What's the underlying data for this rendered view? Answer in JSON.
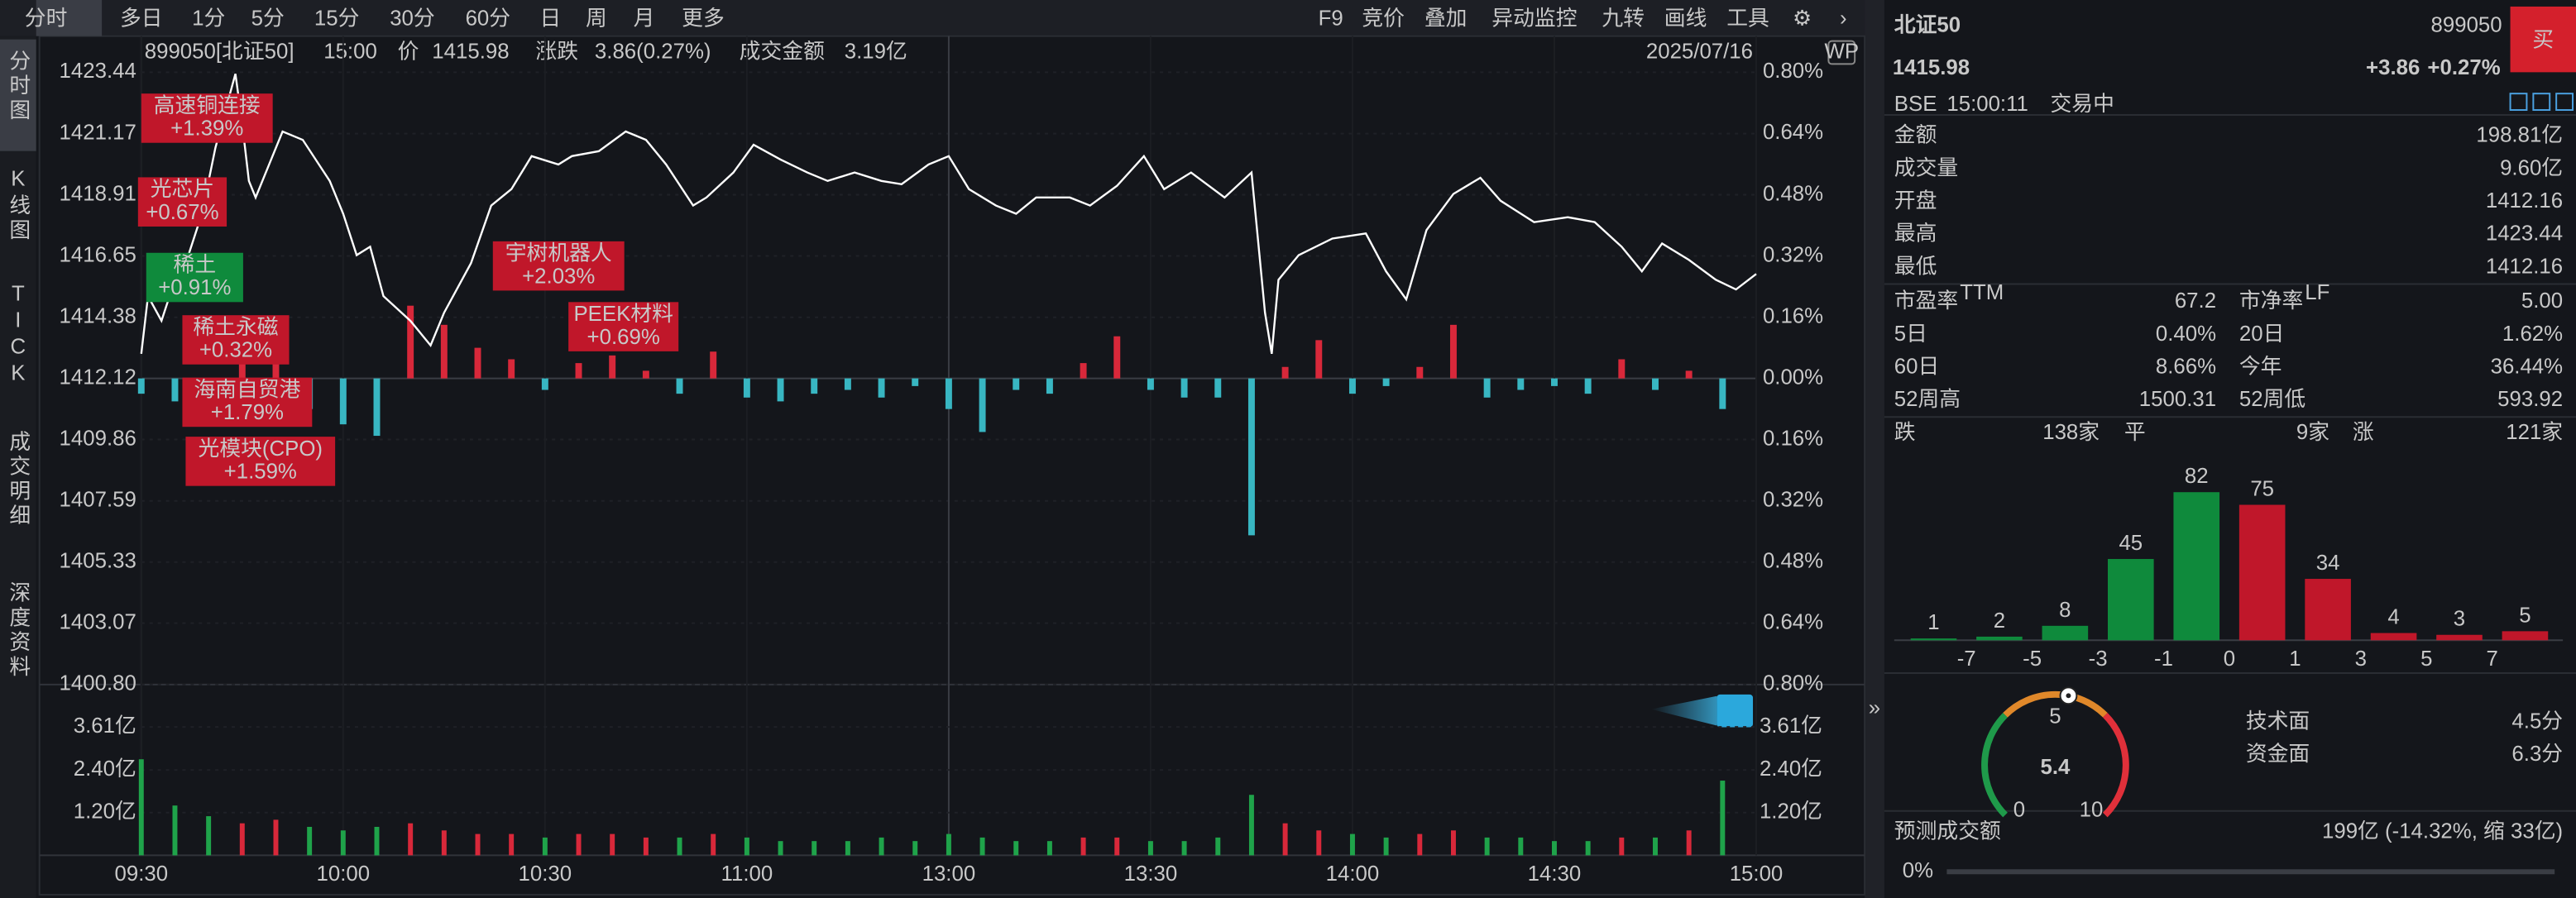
{
  "toolbar": {
    "tabs": [
      "分时",
      "多日",
      "1分",
      "5分",
      "15分",
      "30分",
      "60分",
      "日",
      "周",
      "月",
      "更多"
    ],
    "tools": [
      "F9",
      "竞价",
      "叠加",
      "异动监控",
      "九转",
      "画线",
      "工具"
    ]
  },
  "sidebar": [
    "分时图",
    "K线图",
    "TICK",
    "成交明细",
    "深度资料"
  ],
  "info_bar": {
    "code": "899050[北证50]",
    "time": "15:00",
    "price_label": "价",
    "price": "1415.98",
    "change_label": "涨跌",
    "change": "3.86(0.27%)",
    "amount_label": "成交金额",
    "amount": "3.19亿",
    "date": "2025/07/16"
  },
  "chart_data": [
    {
      "type": "line",
      "color": "#ffffff",
      "up_color": "#e0303a",
      "down_color": "#2fbf5a",
      "flat_color": "#d8d8d8",
      "grid": true,
      "xlim": [
        0,
        240
      ],
      "xticks": [
        {
          "value": 0,
          "label": "09:30"
        },
        {
          "value": 30,
          "label": "10:00"
        },
        {
          "value": 60,
          "label": "10:30"
        },
        {
          "value": 90,
          "label": "11:00"
        },
        {
          "value": 120,
          "label": "13:00"
        },
        {
          "value": 150,
          "label": "13:30"
        },
        {
          "value": 180,
          "label": "14:00"
        },
        {
          "value": 210,
          "label": "14:30"
        },
        {
          "value": 240,
          "label": "15:00"
        }
      ],
      "ylim": [
        1400.8,
        1423.44
      ],
      "yticks": [
        1423.44,
        1421.17,
        1418.91,
        1416.65,
        1414.38,
        1412.12,
        1409.86,
        1407.59,
        1405.33,
        1403.07,
        {
          "value": 1400.8,
          "label": "1400.80"
        }
      ],
      "y2lim": [
        -0.8,
        0.8
      ],
      "y2ticks": [
        {
          "value": 0.8,
          "label": "0.80%"
        },
        {
          "value": 0.64,
          "label": "0.64%"
        },
        {
          "value": 0.48,
          "label": "0.48%"
        },
        {
          "value": 0.32,
          "label": "0.32%"
        },
        {
          "value": 0.16,
          "label": "0.16%"
        },
        {
          "value": 0,
          "label": "0.00%"
        },
        {
          "value": -0.16,
          "label": "0.16%"
        },
        {
          "value": -0.32,
          "label": "0.32%"
        },
        {
          "value": -0.48,
          "label": "0.48%"
        },
        {
          "value": -0.64,
          "label": "0.64%"
        },
        {
          "value": -0.8,
          "label": "0.80%"
        }
      ],
      "x": [
        0,
        1,
        3,
        5,
        7,
        9,
        11,
        13,
        14,
        15,
        16,
        17,
        19,
        21,
        24,
        28,
        30,
        32,
        34,
        36,
        40,
        43,
        45,
        49,
        52,
        55,
        58,
        62,
        64,
        68,
        72,
        75,
        78,
        82,
        84,
        88,
        91,
        95,
        99,
        102,
        106,
        110,
        113,
        117,
        120,
        123,
        127,
        130,
        133,
        138,
        141,
        145,
        149,
        152,
        156,
        161,
        165,
        167,
        168,
        169,
        172,
        177,
        182,
        185,
        188,
        191,
        195,
        199,
        202,
        207,
        212,
        216,
        220,
        223,
        226,
        230,
        234,
        237,
        240
      ],
      "values": [
        1413.03,
        1415.16,
        1414.25,
        1415.77,
        1416.68,
        1418.21,
        1420.64,
        1422.47,
        1423.38,
        1421.55,
        1419.42,
        1418.81,
        1420.03,
        1421.25,
        1420.94,
        1419.42,
        1418.21,
        1416.68,
        1416.99,
        1415.16,
        1414.25,
        1413.34,
        1414.55,
        1416.38,
        1418.51,
        1419.12,
        1420.34,
        1420.03,
        1420.34,
        1420.52,
        1421.25,
        1420.94,
        1420.03,
        1418.51,
        1418.81,
        1419.73,
        1420.76,
        1420.21,
        1419.73,
        1419.42,
        1419.73,
        1419.42,
        1419.3,
        1420.03,
        1420.34,
        1419.12,
        1418.51,
        1418.21,
        1418.81,
        1418.81,
        1418.51,
        1419.24,
        1420.34,
        1419.12,
        1419.73,
        1418.81,
        1419.73,
        1414.55,
        1413.03,
        1415.77,
        1416.68,
        1417.29,
        1417.48,
        1416.08,
        1415.04,
        1417.6,
        1418.94,
        1419.54,
        1418.69,
        1417.9,
        1418.08,
        1417.9,
        1416.99,
        1416.08,
        1417.11,
        1416.5,
        1415.77,
        1415.41,
        1415.98
      ],
      "breadth": {
        "axis": "y2",
        "up_color": "#d8283a",
        "down_color": "#38b6c2",
        "x": [
          0,
          5,
          10,
          15,
          20,
          25,
          30,
          35,
          40,
          45,
          50,
          55,
          60,
          65,
          70,
          75,
          80,
          85,
          90,
          95,
          100,
          105,
          110,
          115,
          120,
          125,
          130,
          135,
          140,
          145,
          150,
          155,
          160,
          165,
          170,
          175,
          180,
          185,
          190,
          195,
          200,
          205,
          210,
          215,
          220,
          225,
          230,
          235
        ],
        "values": [
          -0.04,
          -0.06,
          -0.05,
          0.04,
          0.06,
          -0.08,
          -0.12,
          -0.15,
          0.19,
          0.14,
          0.08,
          0.05,
          -0.03,
          0.04,
          0.06,
          0.02,
          -0.04,
          0.07,
          -0.05,
          -0.06,
          -0.04,
          -0.03,
          -0.05,
          -0.02,
          -0.08,
          -0.14,
          -0.03,
          -0.04,
          0.04,
          0.11,
          -0.03,
          -0.05,
          -0.05,
          -0.41,
          0.03,
          0.1,
          -0.04,
          -0.02,
          0.03,
          0.14,
          -0.05,
          -0.03,
          -0.02,
          -0.04,
          0.05,
          -0.03,
          0.02,
          -0.08
        ]
      },
      "annotations": [
        {
          "name": "高速铜连接",
          "change": "+1.39%",
          "color": "#c0172a"
        },
        {
          "name": "光芯片",
          "change": "+0.67%",
          "color": "#c0172a"
        },
        {
          "name": "稀土",
          "change": "+0.91%",
          "color": "#0f8a3c"
        },
        {
          "name": "稀土永磁",
          "change": "+0.32%",
          "color": "#c0172a"
        },
        {
          "name": "海南自贸港",
          "change": "+1.79%",
          "color": "#c0172a"
        },
        {
          "name": "光模块(CPO)",
          "change": "+1.59%",
          "color": "#c0172a"
        },
        {
          "name": "宇树机器人",
          "change": "+2.03%",
          "color": "#c0172a"
        },
        {
          "name": "PEEK材料",
          "change": "+0.69%",
          "color": "#c0172a"
        }
      ]
    },
    {
      "type": "bar",
      "up_color": "#d8283a",
      "down_color": "#1fa34a",
      "ylim": [
        0,
        4.2
      ],
      "yticks": [
        {
          "value": 3.61,
          "label": "3.61亿"
        },
        {
          "value": 2.4,
          "label": "2.40亿"
        },
        {
          "value": 1.2,
          "label": "1.20亿"
        }
      ],
      "x": [
        0,
        5,
        10,
        15,
        20,
        25,
        30,
        35,
        40,
        45,
        50,
        55,
        60,
        65,
        70,
        75,
        80,
        85,
        90,
        95,
        100,
        105,
        110,
        115,
        120,
        125,
        130,
        135,
        140,
        145,
        150,
        155,
        160,
        165,
        170,
        175,
        180,
        185,
        190,
        195,
        200,
        205,
        210,
        215,
        220,
        225,
        230,
        235
      ],
      "values": [
        2.7,
        1.4,
        1.1,
        0.9,
        1.0,
        0.8,
        0.7,
        0.8,
        0.9,
        0.7,
        0.6,
        0.6,
        0.5,
        0.6,
        0.6,
        0.5,
        0.5,
        0.6,
        0.5,
        0.4,
        0.4,
        0.4,
        0.5,
        0.4,
        0.6,
        0.5,
        0.4,
        0.4,
        0.5,
        0.5,
        0.4,
        0.4,
        0.5,
        1.7,
        0.9,
        0.7,
        0.6,
        0.5,
        0.6,
        0.7,
        0.5,
        0.5,
        0.4,
        0.4,
        0.5,
        0.5,
        0.7,
        2.1
      ]
    },
    {
      "type": "histogram",
      "up_color": "#c0172a",
      "down_color": "#0f8a3c",
      "up_text": "#f03a44",
      "down_text": "#2fbf5a",
      "bins": [
        null,
        -7,
        -5,
        -3,
        -1,
        0,
        1,
        3,
        5,
        7,
        null
      ],
      "values": [
        1,
        2,
        8,
        45,
        82,
        75,
        34,
        4,
        3,
        5
      ],
      "ylim": [
        0,
        90
      ]
    },
    {
      "type": "gauge",
      "min": 0,
      "max": 10,
      "ticks": [
        0,
        5,
        10
      ],
      "value": 5.4,
      "items": [
        {
          "name": "技术面",
          "value": "4.5分"
        },
        {
          "name": "资金面",
          "value": "6.3分"
        }
      ]
    }
  ],
  "quote": {
    "name": "北证50",
    "code": "899050",
    "price": "1415.98",
    "change": "+3.86",
    "pct": "+0.27%",
    "buy": "买",
    "exchange": "BSE",
    "time": "15:00:11",
    "status": "交易中"
  },
  "stats": [
    {
      "label": "金额",
      "value": "198.81亿",
      "color": "#e8e8e8"
    },
    {
      "label": "成交量",
      "value": "9.60亿",
      "color": "#e8e8e8"
    },
    {
      "label": "开盘",
      "value": "1412.16",
      "color": "#f03a44"
    },
    {
      "label": "最高",
      "value": "1423.44",
      "color": "#f03a44"
    },
    {
      "label": "最低",
      "value": "1412.16",
      "color": "#f03a44"
    }
  ],
  "stats2": [
    [
      {
        "label": "市盈率",
        "sup": "TTM",
        "value": "67.2",
        "color": "#e8e8e8"
      },
      {
        "label": "市净率",
        "sup": "LF",
        "value": "5.00",
        "color": "#e8e8e8"
      }
    ],
    [
      {
        "label": "5日",
        "value": "0.40%",
        "color": "#f03a44"
      },
      {
        "label": "20日",
        "value": "1.62%",
        "color": "#f03a44"
      }
    ],
    [
      {
        "label": "60日",
        "value": "8.66%",
        "color": "#f03a44"
      },
      {
        "label": "今年",
        "value": "36.44%",
        "color": "#f03a44"
      }
    ],
    [
      {
        "label": "52周高",
        "value": "1500.31",
        "color": "#e8e8e8"
      },
      {
        "label": "52周低",
        "value": "593.92",
        "color": "#e8e8e8"
      }
    ]
  ],
  "breadth_summary": {
    "down_label": "跌",
    "down": "138家",
    "flat_label": "平",
    "flat": "9家",
    "up_label": "涨",
    "up": "121家"
  },
  "forecast": {
    "label": "预测成交额",
    "value": "199亿 (-14.32%, 缩 33亿)",
    "progress": "0%"
  }
}
